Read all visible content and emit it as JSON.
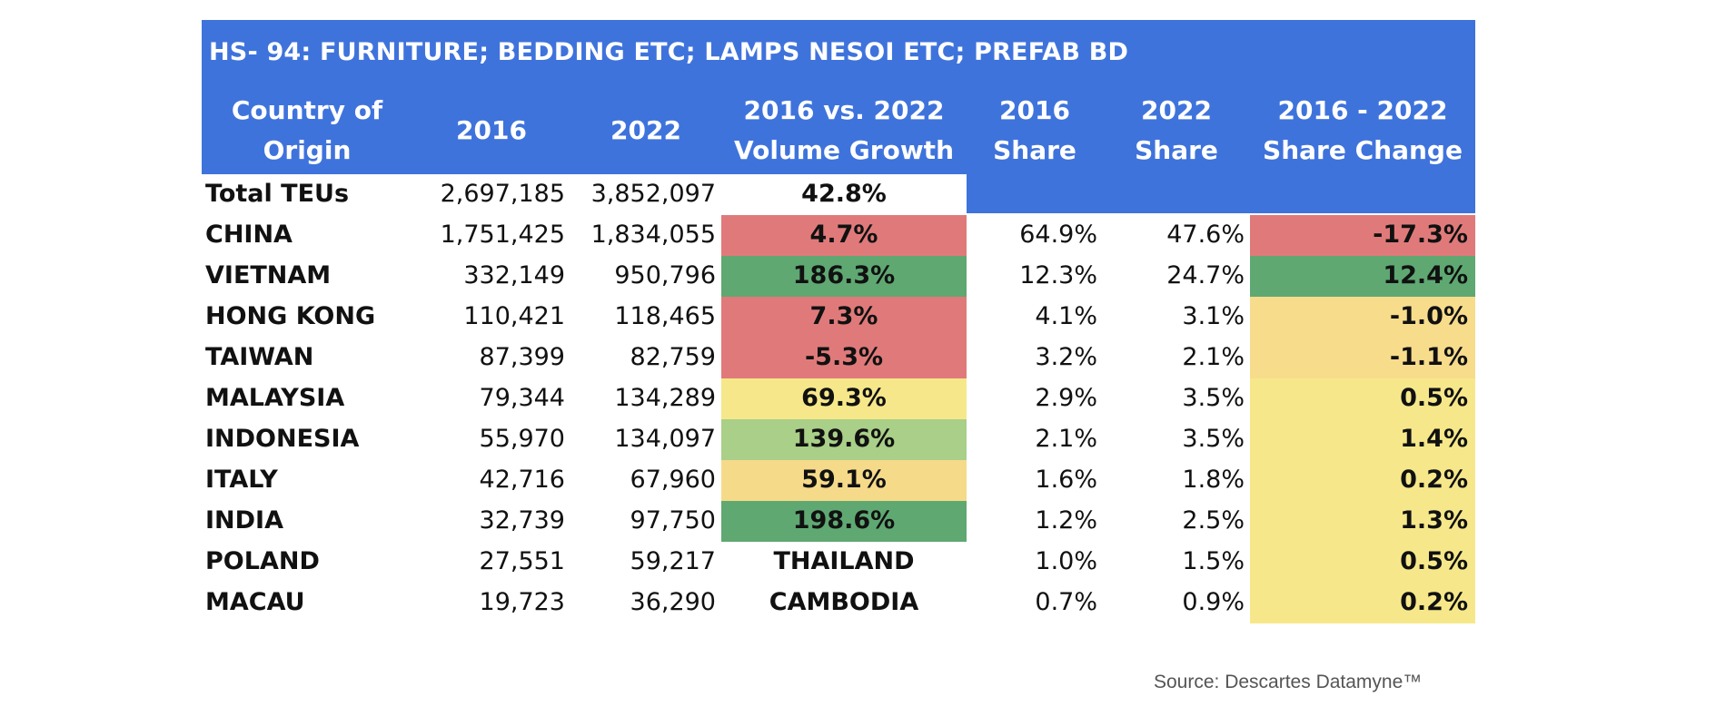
{
  "chart_data": {
    "type": "table",
    "title": "HS- 94: FURNITURE; BEDDING ETC; LAMPS NESOI ETC; PREFAB BD",
    "columns": [
      [
        "Country of",
        "Origin"
      ],
      [
        "2016"
      ],
      [
        "2022"
      ],
      [
        "2016  vs. 2022",
        "Volume Growth"
      ],
      [
        "2016",
        "Share"
      ],
      [
        "2022",
        "Share"
      ],
      [
        "2016 - 2022",
        "Share Change"
      ]
    ],
    "total": {
      "country": "Total TEUs",
      "v2016": "2,697,185",
      "v2022": "3,852,097",
      "growth": "42.8%"
    },
    "rows": [
      {
        "country": "CHINA",
        "v2016": "1,751,425",
        "v2022": "1,834,055",
        "growth": "4.7%",
        "s2016": "64.9%",
        "s2022": "47.6%",
        "change": "-17.3%",
        "growth_color": "#e07a7a",
        "change_color": "#e07a7a"
      },
      {
        "country": "VIETNAM",
        "v2016": "332,149",
        "v2022": "950,796",
        "growth": "186.3%",
        "s2016": "12.3%",
        "s2022": "24.7%",
        "change": "12.4%",
        "growth_color": "#5fa872",
        "change_color": "#5fa872"
      },
      {
        "country": "HONG KONG",
        "v2016": "110,421",
        "v2022": "118,465",
        "growth": "7.3%",
        "s2016": "4.1%",
        "s2022": "3.1%",
        "change": "-1.0%",
        "growth_color": "#e07a7a",
        "change_color": "#f7dc8c"
      },
      {
        "country": "TAIWAN",
        "v2016": "87,399",
        "v2022": "82,759",
        "growth": "-5.3%",
        "s2016": "3.2%",
        "s2022": "2.1%",
        "change": "-1.1%",
        "growth_color": "#e07a7a",
        "change_color": "#f7dc8c"
      },
      {
        "country": "MALAYSIA",
        "v2016": "79,344",
        "v2022": "134,289",
        "growth": "69.3%",
        "s2016": "2.9%",
        "s2022": "3.5%",
        "change": "0.5%",
        "growth_color": "#f6e88a",
        "change_color": "#f6e88a"
      },
      {
        "country": "INDONESIA",
        "v2016": "55,970",
        "v2022": "134,097",
        "growth": "139.6%",
        "s2016": "2.1%",
        "s2022": "3.5%",
        "change": "1.4%",
        "growth_color": "#a9cf88",
        "change_color": "#f6e88a"
      },
      {
        "country": "ITALY",
        "v2016": "42,716",
        "v2022": "67,960",
        "growth": "59.1%",
        "s2016": "1.6%",
        "s2022": "1.8%",
        "change": "0.2%",
        "growth_color": "#f5da8a",
        "change_color": "#f6e88a"
      },
      {
        "country": "INDIA",
        "v2016": "32,739",
        "v2022": "97,750",
        "growth": "198.6%",
        "s2016": "1.2%",
        "s2022": "2.5%",
        "change": "1.3%",
        "growth_color": "#5fa872",
        "change_color": "#f6e88a"
      },
      {
        "country": "POLAND",
        "v2016": "27,551",
        "v2022": "59,217",
        "growth": "THAILAND",
        "s2016": "1.0%",
        "s2022": "1.5%",
        "change": "0.5%",
        "growth_color": "",
        "change_color": "#f6e88a"
      },
      {
        "country": "MACAU",
        "v2016": "19,723",
        "v2022": "36,290",
        "growth": "CAMBODIA",
        "s2016": "0.7%",
        "s2022": "0.9%",
        "change": "0.2%",
        "growth_color": "",
        "change_color": "#f6e88a"
      }
    ]
  },
  "source": "Source: Descartes Datamyne™",
  "colors": {
    "header": "#3f73dc"
  }
}
